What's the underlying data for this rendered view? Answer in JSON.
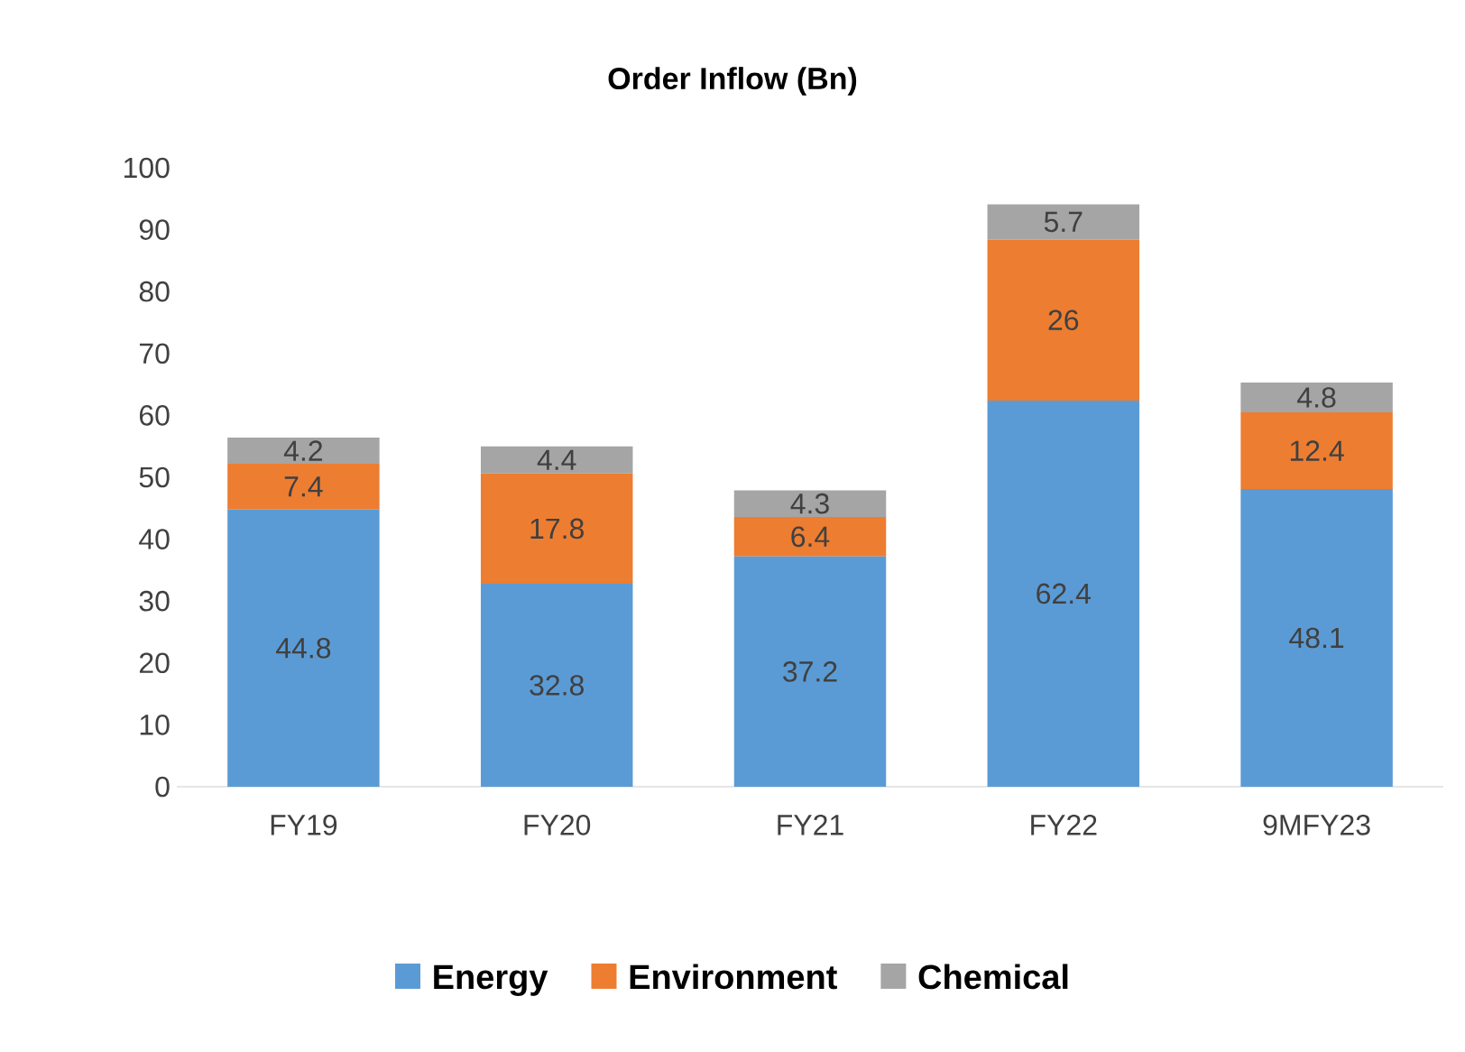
{
  "chart_data": {
    "type": "bar",
    "title": "Order Inflow (Bn)",
    "stacked": true,
    "categories": [
      "FY19",
      "FY20",
      "FY21",
      "FY22",
      "9MFY23"
    ],
    "series": [
      {
        "name": "Energy",
        "color": "#5b9bd5",
        "values": [
          44.8,
          32.8,
          37.2,
          62.4,
          48.1
        ]
      },
      {
        "name": "Environment",
        "color": "#ed7d31",
        "values": [
          7.4,
          17.8,
          6.4,
          26,
          12.4
        ]
      },
      {
        "name": "Chemical",
        "color": "#a5a5a5",
        "values": [
          4.2,
          4.4,
          4.3,
          5.7,
          4.8
        ]
      }
    ],
    "ylim": [
      0,
      100
    ],
    "yticks": [
      0,
      10,
      20,
      30,
      40,
      50,
      60,
      70,
      80,
      90,
      100
    ],
    "data_labels": true,
    "legend": "bottom",
    "grid": false
  }
}
